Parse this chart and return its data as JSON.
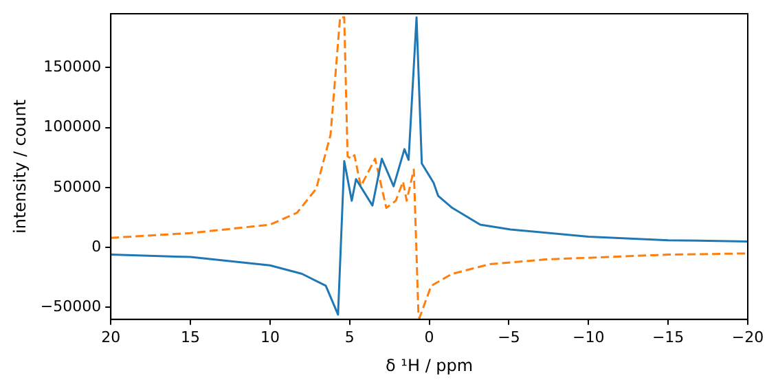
{
  "chart_data": {
    "type": "line",
    "xlabel": "δ ¹H / ppm",
    "ylabel": "intensity / count",
    "xlim": [
      20,
      -20
    ],
    "xticks": [
      20,
      15,
      10,
      5,
      0,
      {
        "value": -5,
        "label": "−5"
      },
      {
        "value": -10,
        "label": "−10"
      },
      {
        "value": -15,
        "label": "−15"
      },
      {
        "value": -20,
        "label": "−20"
      }
    ],
    "ylim": [
      -60000,
      195000
    ],
    "yticks": [
      {
        "value": -50000,
        "label": "−50000"
      },
      0,
      50000,
      100000,
      150000
    ],
    "grid": false,
    "legend": false,
    "marker": "none",
    "series": [
      {
        "color": "#1f77b4",
        "line_style": "solid",
        "x": [
          20,
          15,
          10,
          8,
          6.5,
          5.73,
          5.34,
          4.87,
          4.6,
          3.57,
          2.98,
          2.24,
          1.56,
          1.3,
          0.8,
          0.47,
          -0.27,
          -0.56,
          -1.44,
          -3.2,
          -5.1,
          -10,
          -15,
          -20
        ],
        "values": [
          -6000,
          -8000,
          -15000,
          -22000,
          -32000,
          -56000,
          72000,
          39000,
          57000,
          35000,
          74000,
          51000,
          82000,
          73000,
          192000,
          70000,
          54000,
          43000,
          33000,
          19000,
          15000,
          9000,
          6000,
          5000
        ]
      },
      {
        "color": "#ff7f0e",
        "line_style": "dashed",
        "x": [
          20,
          15,
          10,
          8.3,
          7.1,
          6.2,
          5.6,
          5.34,
          5.13,
          4.9,
          4.7,
          4.3,
          3.4,
          2.7,
          2.1,
          1.65,
          1.42,
          0.97,
          0.68,
          0.62,
          -0.12,
          -1.44,
          -3.8,
          -7.3,
          -15,
          -20
        ],
        "values": [
          8000,
          12000,
          19000,
          29000,
          49000,
          94000,
          192000,
          192000,
          76000,
          74000,
          77000,
          51000,
          74000,
          33000,
          39000,
          55000,
          39000,
          65000,
          -56000,
          -59000,
          -32000,
          -22000,
          -14000,
          -10000,
          -6000,
          -5000
        ]
      }
    ]
  }
}
